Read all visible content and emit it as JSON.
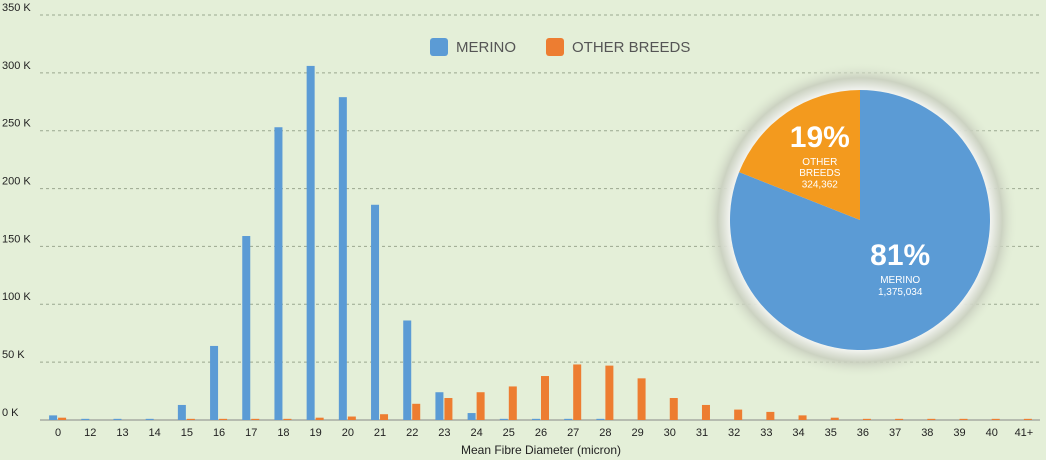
{
  "chart_data": [
    {
      "type": "bar",
      "x_label": "Mean Fibre Diameter (micron)",
      "categories": [
        "0",
        "12",
        "13",
        "14",
        "15",
        "16",
        "17",
        "18",
        "19",
        "20",
        "21",
        "22",
        "23",
        "24",
        "25",
        "26",
        "27",
        "28",
        "29",
        "30",
        "31",
        "32",
        "33",
        "34",
        "35",
        "36",
        "37",
        "38",
        "39",
        "40",
        "41+"
      ],
      "series": [
        {
          "name": "MERINO",
          "color": "#5b9bd5",
          "values": [
            4,
            1,
            1,
            1,
            13,
            64,
            159,
            253,
            306,
            279,
            186,
            86,
            24,
            6,
            1,
            1,
            1,
            1,
            0,
            0,
            0,
            0,
            0,
            0,
            0,
            0,
            0,
            0,
            0,
            0,
            0
          ]
        },
        {
          "name": "OTHER BREEDS",
          "color": "#ed7d31",
          "values": [
            2,
            0,
            0,
            0,
            1,
            1,
            1,
            1,
            2,
            3,
            5,
            14,
            19,
            24,
            29,
            38,
            48,
            47,
            36,
            19,
            13,
            9,
            7,
            4,
            2,
            1,
            1,
            1,
            1,
            1,
            1
          ]
        }
      ],
      "ylim": [
        0,
        350
      ],
      "yticks": [
        {
          "value": 0,
          "label": "0 K"
        },
        {
          "value": 50,
          "label": "50 K"
        },
        {
          "value": 100,
          "label": "100 K"
        },
        {
          "value": 150,
          "label": "150 K"
        },
        {
          "value": 200,
          "label": "200 K"
        },
        {
          "value": 250,
          "label": "250 K"
        },
        {
          "value": 300,
          "label": "300 K"
        },
        {
          "value": 350,
          "label": "350 K"
        }
      ],
      "grid": true,
      "legend": "top"
    },
    {
      "type": "pie",
      "categories": [
        "MERINO",
        "OTHER BREEDS"
      ],
      "values": [
        81,
        19
      ],
      "value_labels": [
        "81%",
        "19%"
      ],
      "counts": [
        1375034,
        324362
      ],
      "count_labels": [
        "1,375,034",
        "324,362"
      ],
      "colors": [
        "#5b9bd5",
        "#f39a1e"
      ]
    }
  ]
}
